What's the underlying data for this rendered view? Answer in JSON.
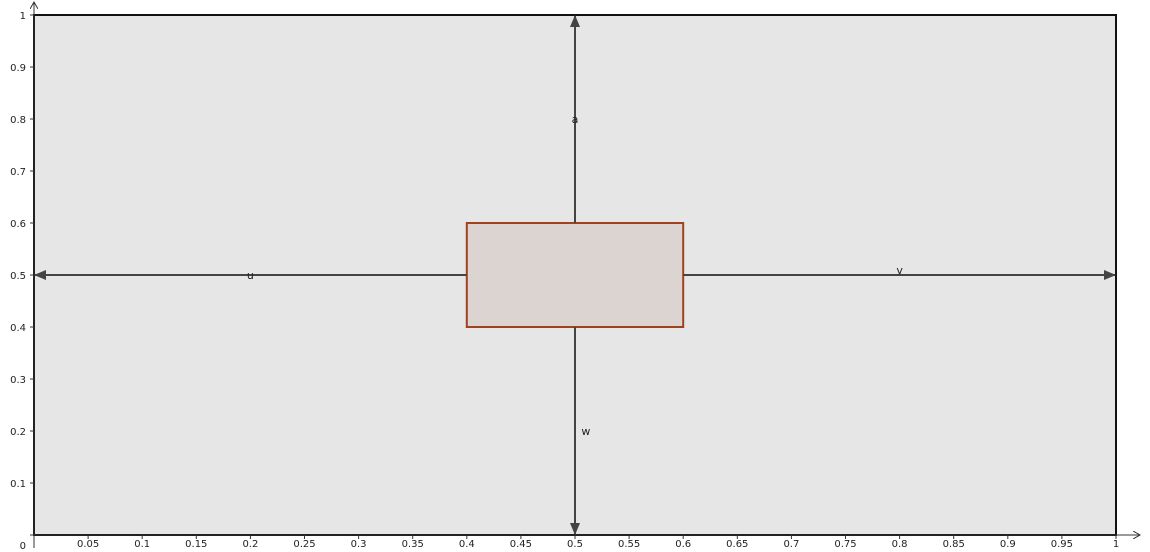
{
  "diagram": {
    "x_axis": {
      "range": [
        0,
        1
      ],
      "tick_labels": [
        "0.05",
        "0.1",
        "0.15",
        "0.2",
        "0.25",
        "0.3",
        "0.35",
        "0.4",
        "0.45",
        "0.5",
        "0.55",
        "0.6",
        "0.65",
        "0.7",
        "0.75",
        "0.8",
        "0.85",
        "0.9",
        "0.95",
        "1"
      ],
      "tick_values": [
        0.05,
        0.1,
        0.15,
        0.2,
        0.25,
        0.3,
        0.35,
        0.4,
        0.45,
        0.5,
        0.55,
        0.6,
        0.65,
        0.7,
        0.75,
        0.8,
        0.85,
        0.9,
        0.95,
        1
      ]
    },
    "y_axis": {
      "range": [
        0,
        1
      ],
      "tick_labels": [
        "0",
        "0.1",
        "0.2",
        "0.3",
        "0.4",
        "0.5",
        "0.6",
        "0.7",
        "0.8",
        "0.9",
        "1"
      ],
      "tick_values": [
        0,
        0.1,
        0.2,
        0.3,
        0.4,
        0.5,
        0.6,
        0.7,
        0.8,
        0.9,
        1
      ]
    },
    "domain_rect": {
      "x": [
        0,
        1
      ],
      "y": [
        0,
        1
      ]
    },
    "inner_rect": {
      "x": [
        0.4,
        0.6
      ],
      "y": [
        0.4,
        0.6
      ]
    },
    "vectors": [
      {
        "name": "a",
        "from": [
          0.5,
          0.6
        ],
        "to": [
          0.5,
          1.0
        ],
        "label_at": [
          0.5,
          0.8
        ]
      },
      {
        "name": "u",
        "from": [
          0.4,
          0.5
        ],
        "to": [
          0.0,
          0.5
        ],
        "label_at": [
          0.2,
          0.5
        ]
      },
      {
        "name": "v",
        "from": [
          0.6,
          0.5
        ],
        "to": [
          1.0,
          0.5
        ],
        "label_at": [
          0.8,
          0.51
        ]
      },
      {
        "name": "w",
        "from": [
          0.5,
          0.4
        ],
        "to": [
          0.5,
          0.0
        ],
        "label_at": [
          0.51,
          0.2
        ]
      }
    ],
    "colors": {
      "domain_fill": "#e6e6e6",
      "domain_stroke": "#111111",
      "inner_fill": "#dcd4d0",
      "inner_stroke": "#a0421e",
      "vector": "#444444"
    }
  }
}
